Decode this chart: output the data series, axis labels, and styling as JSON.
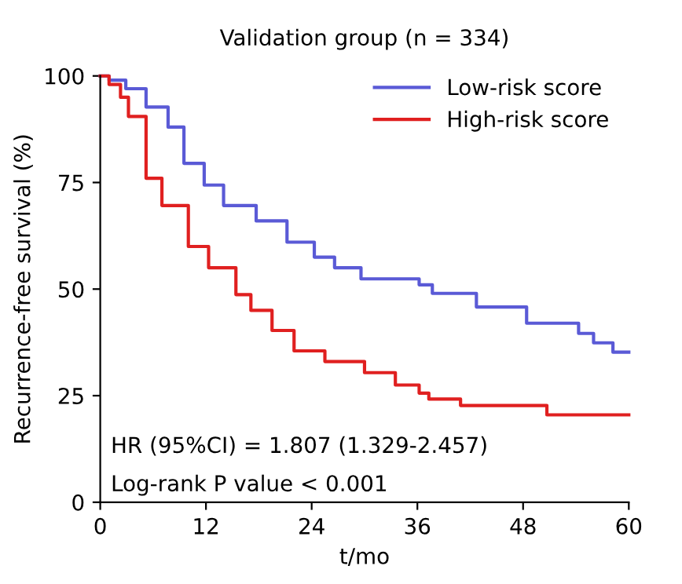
{
  "chart_data": {
    "type": "step",
    "title": "Validation group (n = 334)",
    "xlabel": "t/mo",
    "ylabel": "Recurrence-free survival (%)",
    "xlim": [
      0,
      60
    ],
    "xticks": [
      0,
      12,
      24,
      36,
      48,
      60
    ],
    "ylim": [
      0,
      100
    ],
    "yticks": [
      0,
      25,
      50,
      75,
      100
    ],
    "grid": false,
    "legend": "top right",
    "marker": "none",
    "line_style": "solid",
    "series": [
      {
        "name": "Low-risk score",
        "color": "#5a5ad6",
        "x": [
          0,
          1,
          2.9,
          5.2,
          7.7,
          9.5,
          11.8,
          14,
          17.7,
          21.2,
          24.3,
          26.6,
          29.6,
          36.2,
          37.7,
          42.7,
          48.4,
          54.3,
          56,
          58.2,
          60
        ],
        "values": [
          100,
          99,
          97,
          92.7,
          88,
          79.5,
          74.4,
          69.6,
          66,
          61,
          57.5,
          55,
          52.4,
          51,
          49,
          45.8,
          42,
          39.6,
          37.4,
          35.2,
          35.2
        ]
      },
      {
        "name": "High-risk score",
        "color": "#e02020",
        "x": [
          0,
          1,
          2.3,
          3.2,
          5.2,
          7,
          10,
          12.3,
          15.4,
          17.1,
          19.5,
          22,
          25.5,
          30,
          33.5,
          36.2,
          37.3,
          40.9,
          50.7,
          60
        ],
        "values": [
          100,
          98,
          95,
          90.5,
          76,
          69.6,
          60,
          55,
          48.7,
          45,
          40.3,
          35.5,
          33,
          30.4,
          27.5,
          25.6,
          24.2,
          22.7,
          20.5,
          20.5
        ]
      }
    ],
    "annotations": [
      "HR (95%CI) = 1.807 (1.329-2.457)",
      "Log-rank P value < 0.001"
    ]
  }
}
